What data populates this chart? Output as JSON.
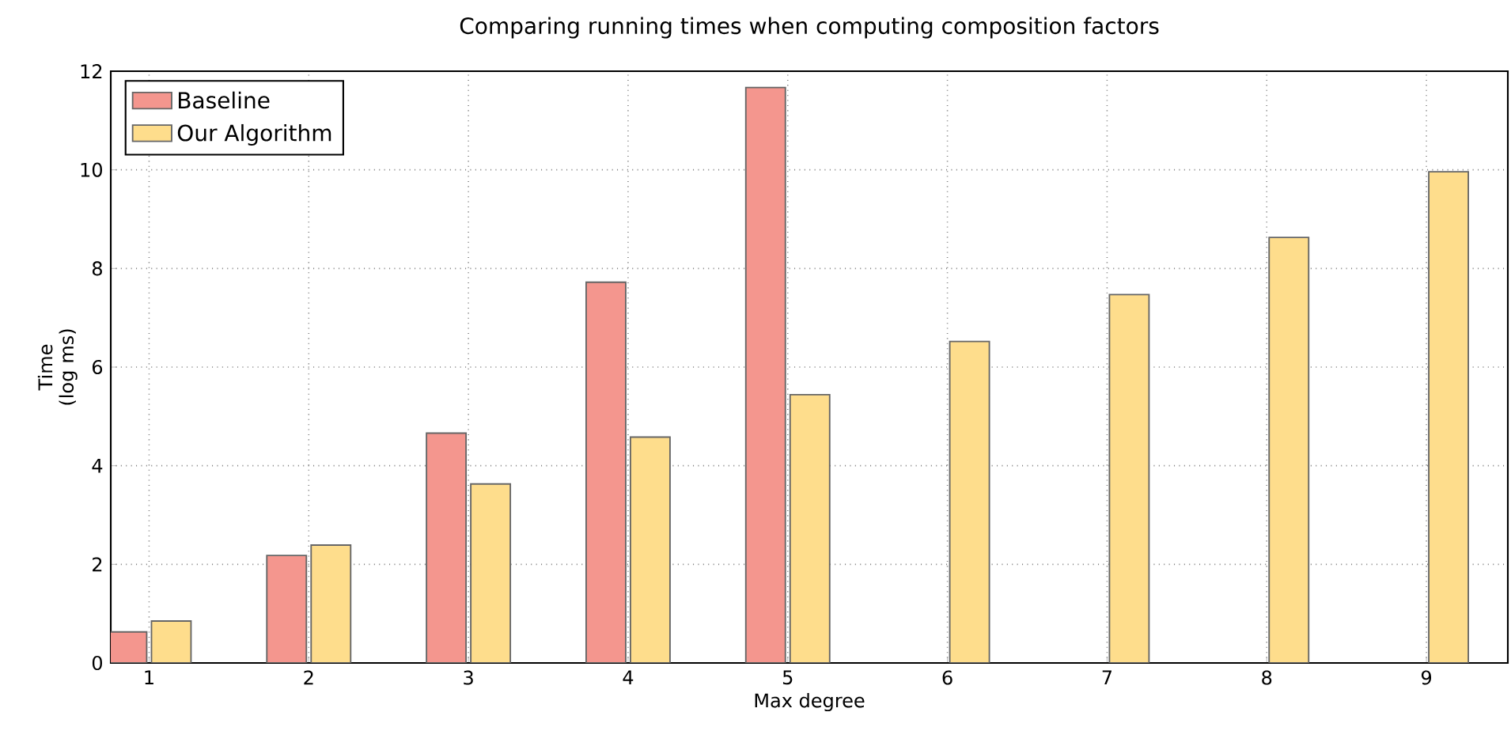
{
  "chart_data": {
    "type": "bar",
    "title": "Comparing running times when computing composition factors",
    "xlabel": "Max degree",
    "ylabel": "Time (log ms)",
    "categories": [
      "1",
      "2",
      "3",
      "4",
      "5",
      "6",
      "7",
      "8",
      "9"
    ],
    "series": [
      {
        "name": "Baseline",
        "color": "#f4968e",
        "values": [
          0.63,
          2.18,
          4.66,
          7.72,
          11.67,
          null,
          null,
          null,
          null
        ]
      },
      {
        "name": "Our Algorithm",
        "color": "#fedd8c",
        "values": [
          0.85,
          2.39,
          3.63,
          4.58,
          5.44,
          6.52,
          7.47,
          8.63,
          9.96
        ]
      }
    ],
    "ylim": [
      0,
      12
    ],
    "yticks": [
      0,
      2,
      4,
      6,
      8,
      10,
      12
    ],
    "grid": true,
    "legend": "top left"
  }
}
